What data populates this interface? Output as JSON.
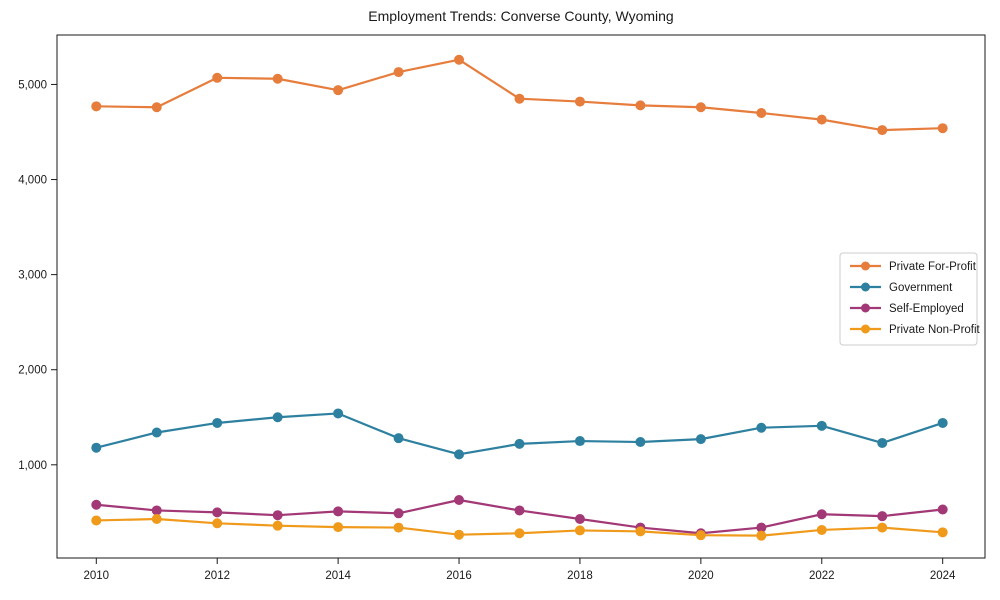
{
  "chart_data": {
    "type": "line",
    "title": "Employment Trends: Converse County, Wyoming",
    "xlabel": "",
    "ylabel": "",
    "x": [
      2010,
      2011,
      2012,
      2013,
      2014,
      2015,
      2016,
      2017,
      2018,
      2019,
      2020,
      2021,
      2022,
      2023,
      2024
    ],
    "series": [
      {
        "name": "Private For-Profit",
        "color": "#E67D3C",
        "values": [
          4770,
          4760,
          5070,
          5060,
          4940,
          5130,
          5260,
          4850,
          4820,
          4780,
          4760,
          4700,
          4630,
          4520,
          4540
        ]
      },
      {
        "name": "Government",
        "color": "#2E80A0",
        "values": [
          1180,
          1340,
          1440,
          1500,
          1540,
          1280,
          1110,
          1220,
          1250,
          1240,
          1270,
          1390,
          1410,
          1230,
          1440
        ]
      },
      {
        "name": "Self-Employed",
        "color": "#A23876",
        "values": [
          580,
          520,
          500,
          470,
          510,
          490,
          630,
          520,
          430,
          340,
          280,
          340,
          480,
          460,
          530
        ]
      },
      {
        "name": "Private Non-Profit",
        "color": "#F09A1C",
        "values": [
          415,
          430,
          385,
          360,
          345,
          340,
          265,
          280,
          310,
          300,
          260,
          255,
          315,
          340,
          290
        ]
      }
    ],
    "x_tick_values": [
      2010,
      2012,
      2014,
      2016,
      2018,
      2020,
      2022,
      2024
    ],
    "x_tick_labels": [
      "2010",
      "2012",
      "2014",
      "2016",
      "2018",
      "2020",
      "2022",
      "2024"
    ],
    "y_tick_values": [
      1000,
      2000,
      3000,
      4000,
      5000
    ],
    "y_tick_labels": [
      "1,000",
      "2,000",
      "3,000",
      "4,000",
      "5,000"
    ],
    "xlim": [
      2009.35,
      2024.7
    ],
    "ylim": [
      20,
      5520
    ],
    "grid": false,
    "legend_position": "center right",
    "legend_order": [
      "Private For-Profit",
      "Government",
      "Self-Employed",
      "Private Non-Profit"
    ]
  }
}
